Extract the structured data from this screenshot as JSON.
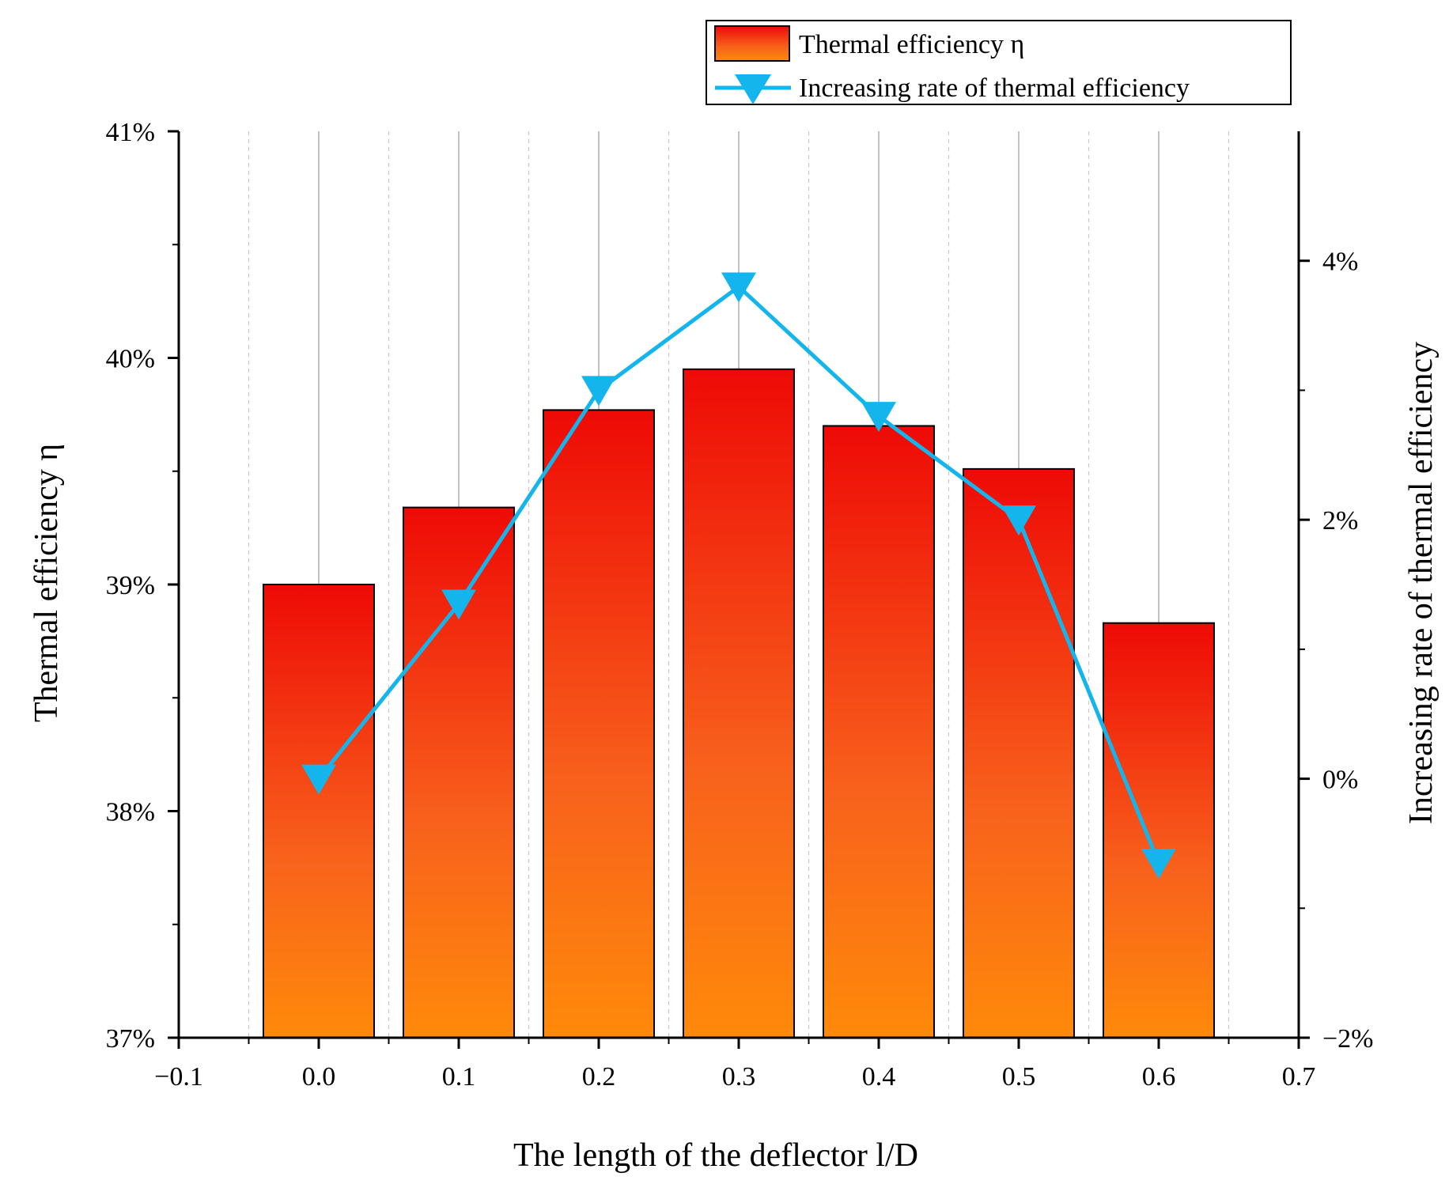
{
  "chart_data": {
    "type": "bar",
    "categories": [
      "0.0",
      "0.1",
      "0.2",
      "0.3",
      "0.4",
      "0.5",
      "0.6"
    ],
    "x": [
      0.0,
      0.1,
      0.2,
      0.3,
      0.4,
      0.5,
      0.6
    ],
    "series": [
      {
        "name": "Thermal efficiency η",
        "axis": "left",
        "kind": "bar",
        "values": [
          39.0,
          39.34,
          39.77,
          39.95,
          39.7,
          39.51,
          38.83
        ]
      },
      {
        "name": "Increasing rate of thermal efficiency",
        "axis": "right",
        "kind": "line",
        "marker": "triangle-down",
        "values": [
          0.0,
          1.35,
          3.0,
          3.8,
          2.8,
          2.0,
          -0.65
        ]
      }
    ],
    "xlabel": "The length of the deflector l/D",
    "ylabel": "Thermal efficiency η",
    "y2label": "Increasing rate of thermal efficiency",
    "xlim": [
      -0.1,
      0.7
    ],
    "ylim": [
      37,
      41
    ],
    "y2lim": [
      -2,
      5
    ],
    "xticks": [
      -0.1,
      0.0,
      0.1,
      0.2,
      0.3,
      0.4,
      0.5,
      0.6,
      0.7
    ],
    "xtick_labels": [
      "−0.1",
      "0.0",
      "0.1",
      "0.2",
      "0.3",
      "0.4",
      "0.5",
      "0.6",
      "0.7"
    ],
    "yticks": [
      37,
      38,
      39,
      40,
      41
    ],
    "ytick_labels": [
      "37%",
      "38%",
      "39%",
      "40%",
      "41%"
    ],
    "y2ticks": [
      -2,
      0,
      2,
      4
    ],
    "y2tick_labels": [
      "−2%",
      "0%",
      "2%",
      "4%"
    ],
    "legend_position": "top-right",
    "grid": true
  },
  "colors": {
    "bar_top": "#ee0a06",
    "bar_mid": "#f8621c",
    "bar_bottom": "#ff8a0a",
    "line": "#14b4ec",
    "axis": "#000000",
    "grid": "#9a9a9a"
  }
}
